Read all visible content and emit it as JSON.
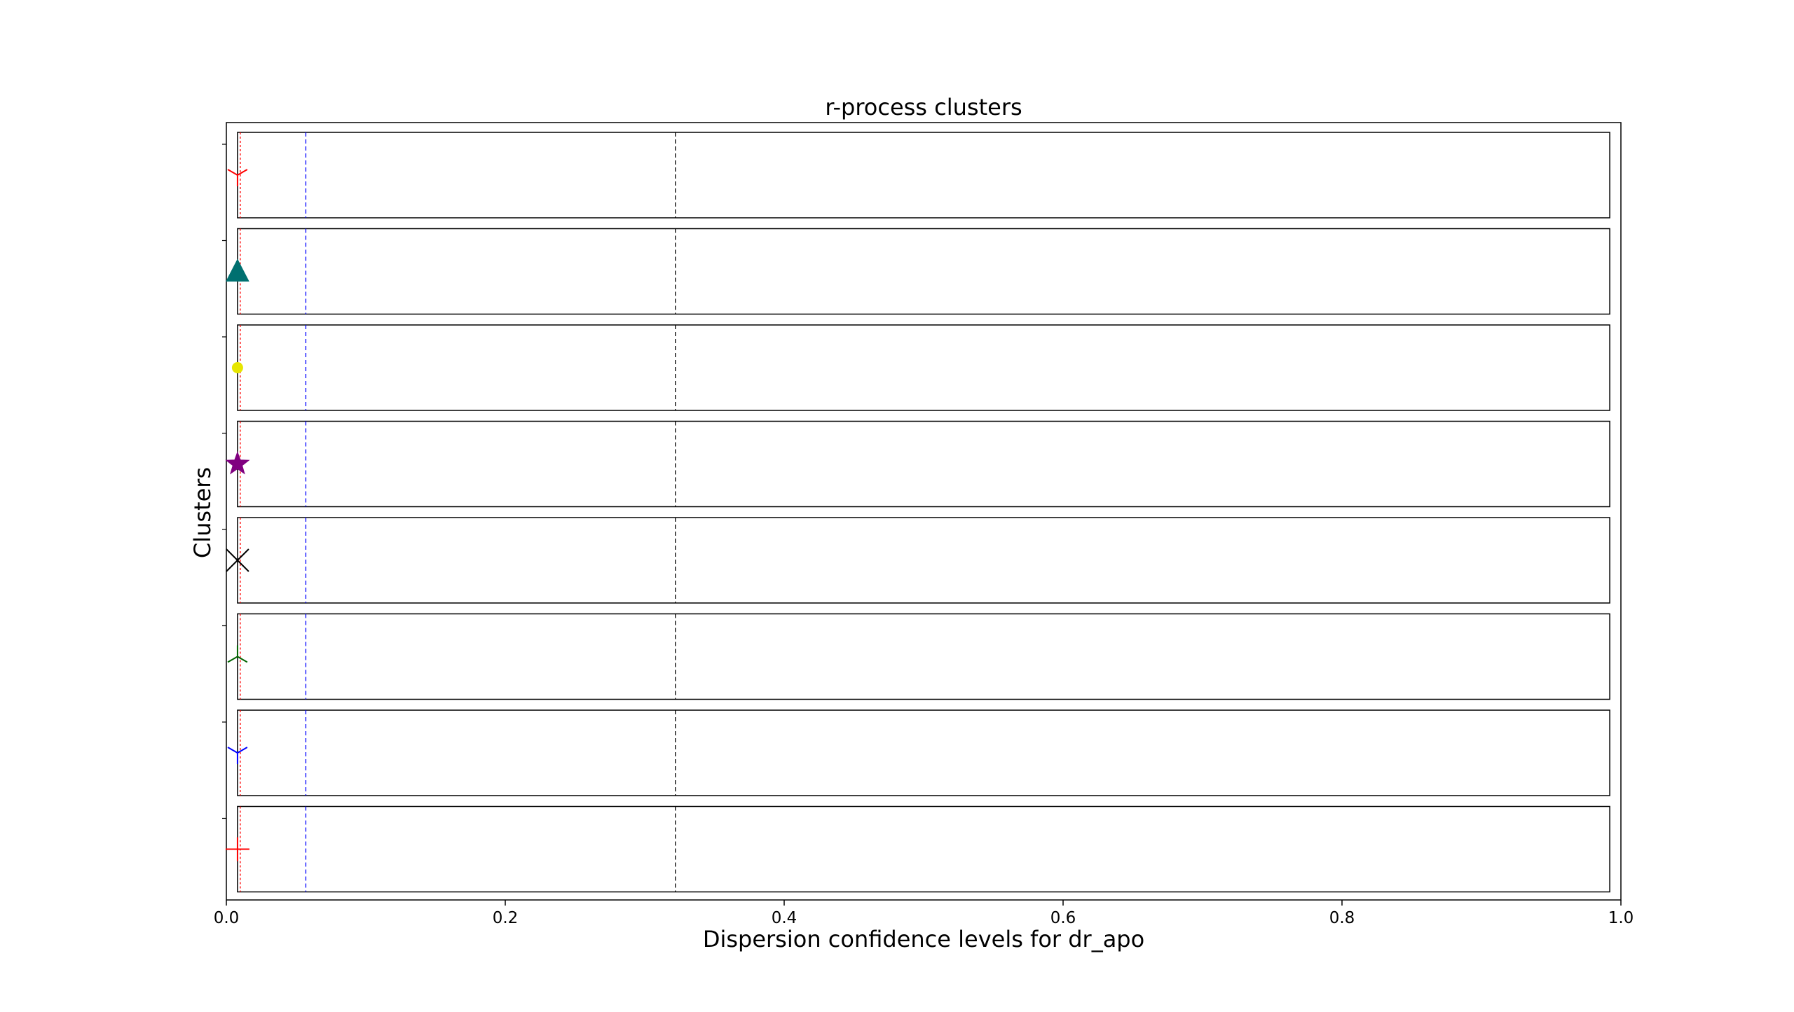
{
  "chart_data": {
    "type": "scatter",
    "title": "r-process clusters",
    "xlabel": "Dispersion confidence levels for dr_apo",
    "ylabel": "Clusters",
    "xlim": [
      0.0,
      1.0
    ],
    "x_ticks": [
      "0.0",
      "0.2",
      "0.4",
      "0.6",
      "0.8",
      "1.0"
    ],
    "grid": false,
    "legend": "none",
    "reference_lines": [
      {
        "x": 0.01,
        "color": "#ff0000",
        "style": "dotted"
      },
      {
        "x": 0.057,
        "color": "#0000ff",
        "style": "dashed"
      },
      {
        "x": 0.322,
        "color": "#000000",
        "style": "dashed"
      }
    ],
    "box_x_range": [
      0.008,
      0.992
    ],
    "clusters": [
      {
        "x": 0.008,
        "marker": "tri-down",
        "color": "#ff0000"
      },
      {
        "x": 0.008,
        "marker": "triangle-filled",
        "color": "#007070"
      },
      {
        "x": 0.008,
        "marker": "circle-filled",
        "color": "#e6e600"
      },
      {
        "x": 0.008,
        "marker": "star-filled",
        "color": "#800080"
      },
      {
        "x": 0.008,
        "marker": "x",
        "color": "#000000"
      },
      {
        "x": 0.008,
        "marker": "tri-up",
        "color": "#006400"
      },
      {
        "x": 0.008,
        "marker": "tri-down",
        "color": "#0000ff"
      },
      {
        "x": 0.008,
        "marker": "plus",
        "color": "#ff0000"
      }
    ]
  }
}
